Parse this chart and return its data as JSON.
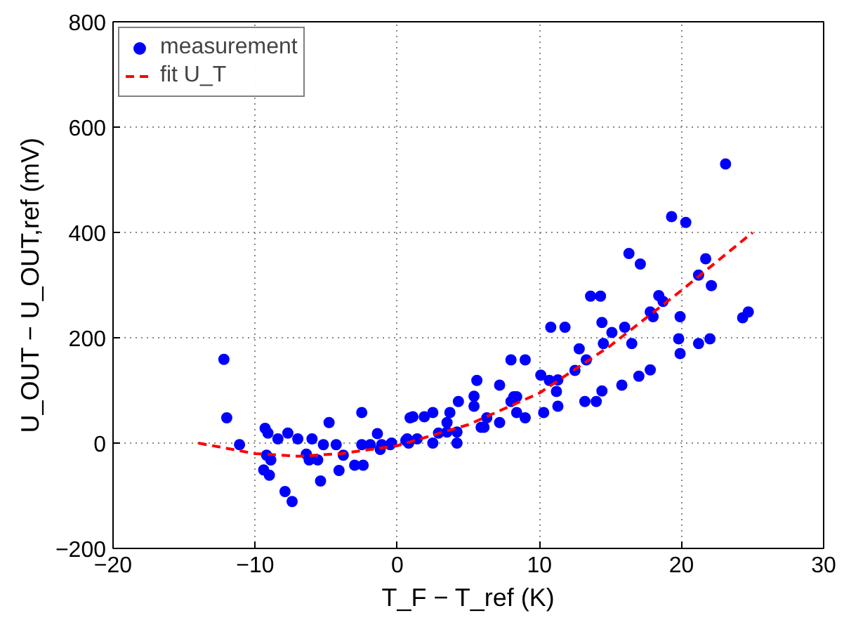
{
  "chart_data": {
    "type": "scatter",
    "xlabel": "T_F − T_ref (K)",
    "ylabel": "U_OUT − U_OUT,ref (mV)",
    "xlim": [
      -20,
      30
    ],
    "xticks": [
      -20,
      -10,
      0,
      10,
      20,
      30
    ],
    "ylim": [
      -200,
      800
    ],
    "yticks": [
      -200,
      0,
      200,
      400,
      600,
      800
    ],
    "grid": true,
    "legend": "top left",
    "series": [
      {
        "name": "measurement",
        "marker": "circle",
        "color": "#0000ff",
        "x": [
          -12.2,
          -12.0,
          -11.1,
          -9.3,
          -9.1,
          -9.2,
          -8.9,
          -9.4,
          -9.0,
          -8.4,
          -7.7,
          -7.0,
          -7.9,
          -7.4,
          -6.4,
          -6.2,
          -5.6,
          -6.0,
          -5.4,
          -5.2,
          -4.8,
          -4.3,
          -4.1,
          -3.8,
          -3.0,
          -2.4,
          -2.5,
          -1.4,
          -2.5,
          -1.9,
          -1.2,
          -1.1,
          -0.5,
          0.7,
          0.9,
          -0.4,
          0.6,
          0.8,
          1.4,
          1.1,
          1.9,
          2.5,
          2.5,
          2.9,
          3.5,
          3.5,
          3.7,
          4.2,
          4.2,
          4.3,
          5.4,
          5.4,
          5.6,
          5.9,
          6.1,
          6.3,
          7.2,
          7.2,
          8.0,
          9.0,
          8.0,
          8.2,
          8.4,
          8.4,
          9.0,
          10.3,
          10.1,
          10.8,
          11.8,
          10.7,
          11.2,
          11.3,
          11.3,
          12.5,
          12.8,
          13.3,
          13.2,
          14.0,
          13.6,
          14.3,
          14.4,
          14.5,
          14.4,
          23.1,
          19.3,
          20.3,
          16.3,
          17.1,
          21.7,
          21.2,
          22.1,
          18.4,
          18.7,
          17.8,
          18.0,
          19.9,
          15.1,
          16.0,
          16.5,
          19.8,
          19.9,
          21.2,
          22.0,
          24.3,
          24.7,
          17.8,
          17.0,
          15.8
        ],
        "values": [
          159,
          48,
          -3,
          28,
          19,
          -23,
          -32,
          -51,
          -61,
          8,
          19,
          8,
          -92,
          -111,
          -21,
          -32,
          -32,
          8,
          -72,
          -3,
          39,
          -3,
          -52,
          -23,
          -42,
          -42,
          58,
          18,
          -3,
          -3,
          -12,
          -3,
          -3,
          8,
          48,
          0,
          5,
          0,
          8,
          50,
          50,
          58,
          0,
          19,
          21,
          39,
          58,
          21,
          0,
          79,
          89,
          70,
          119,
          30,
          30,
          48,
          39,
          110,
          158,
          158,
          79,
          88,
          88,
          58,
          48,
          58,
          129,
          220,
          220,
          119,
          98,
          120,
          70,
          138,
          179,
          158,
          79,
          79,
          279,
          279,
          229,
          189,
          99,
          530,
          430,
          419,
          360,
          340,
          350,
          319,
          299,
          280,
          269,
          249,
          240,
          240,
          210,
          220,
          189,
          198,
          170,
          189,
          198,
          238,
          249,
          139,
          127,
          110
        ]
      },
      {
        "name": "fit U_T",
        "type": "line",
        "line_style": "dashed",
        "color": "#ff0000",
        "x": [
          -14,
          -10,
          -7,
          -4,
          0,
          5,
          10,
          15,
          20,
          25
        ],
        "values": [
          0,
          -20,
          -25,
          -20,
          -5,
          35,
          95,
          185,
          290,
          400
        ]
      }
    ]
  }
}
